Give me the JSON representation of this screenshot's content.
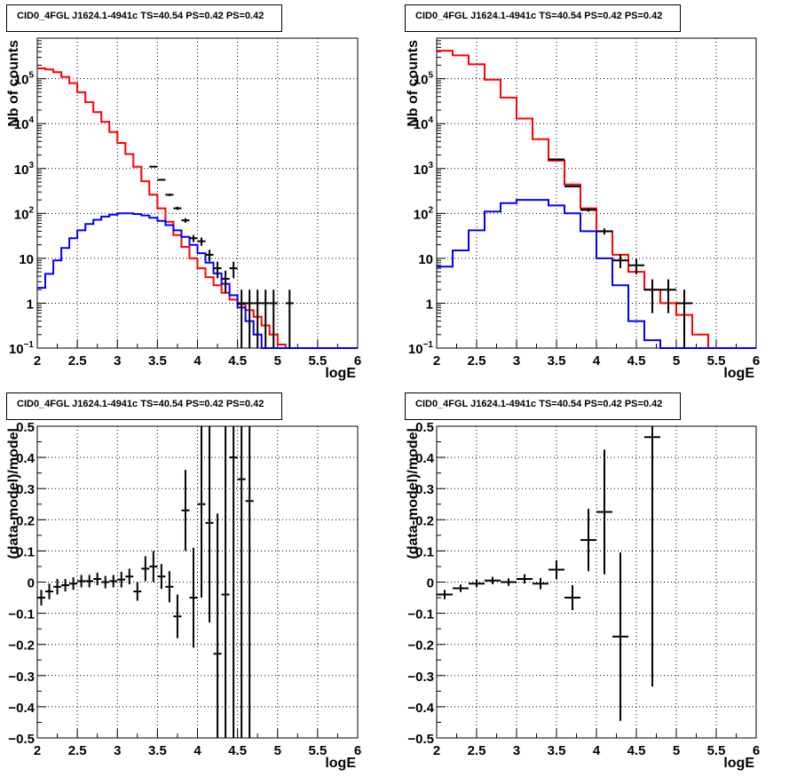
{
  "colors": {
    "data": "#000000",
    "total_model": "#ff0000",
    "component_model": "#0000ff",
    "grid": "#000000"
  },
  "chart_data": [
    {
      "type": "line",
      "title": "CID0_4FGL J1624.1-4941c TS=40.54 PS=0.42 PS=0.42",
      "xlabel": "logE",
      "ylabel": "Nb of counts",
      "xlim": [
        2,
        6
      ],
      "ylim": [
        0.1,
        800000
      ],
      "log_y": true,
      "grid": true,
      "x_ticks": [
        "2",
        "2.5",
        "3",
        "3.5",
        "4",
        "4.5",
        "5",
        "5.5",
        "6"
      ],
      "y_ticks": [
        {
          "value": 0.1,
          "base": "10",
          "exp": "−1"
        },
        {
          "value": 1,
          "label": "1"
        },
        {
          "value": 10,
          "label": "10"
        },
        {
          "value": 100,
          "base": "10",
          "exp": "2"
        },
        {
          "value": 1000,
          "base": "10",
          "exp": "3"
        },
        {
          "value": 10000,
          "base": "10",
          "exp": "4"
        },
        {
          "value": 100000,
          "base": "10",
          "exp": "5"
        }
      ],
      "bin_width": 0.1,
      "series": [
        {
          "kind": "hist",
          "color": "#ff0000",
          "x": [
            2.0,
            2.1,
            2.2,
            2.3,
            2.4,
            2.5,
            2.6,
            2.7,
            2.8,
            2.9,
            3.0,
            3.1,
            3.2,
            3.3,
            3.4,
            3.5,
            3.6,
            3.7,
            3.8,
            3.9,
            4.0,
            4.1,
            4.2,
            4.3,
            4.4,
            4.5,
            4.6,
            4.7,
            4.8,
            4.9,
            5.0,
            5.1,
            5.2,
            5.3,
            5.4,
            5.5,
            5.6,
            5.7,
            5.8,
            5.9
          ],
          "values": [
            170000,
            160000,
            140000,
            110000,
            80000,
            50000,
            30000,
            18000,
            11000,
            6500,
            3700,
            2100,
            1100,
            520,
            260,
            130,
            65,
            33,
            18,
            10,
            6,
            3.8,
            2.5,
            1.7,
            1.2,
            0.95,
            0.7,
            0.5,
            0.32,
            0.2,
            0.12,
            0.1,
            0.1,
            0.1,
            0.1,
            0.1,
            0.1,
            0.1,
            0.1,
            0.1
          ]
        },
        {
          "kind": "hist",
          "color": "#0000ff",
          "x": [
            2.0,
            2.1,
            2.2,
            2.3,
            2.4,
            2.5,
            2.6,
            2.7,
            2.8,
            2.9,
            3.0,
            3.1,
            3.2,
            3.3,
            3.4,
            3.5,
            3.6,
            3.7,
            3.8,
            3.9,
            4.0,
            4.1,
            4.2,
            4.3,
            4.4,
            4.5,
            4.6,
            4.7,
            4.8,
            4.9,
            5.0,
            5.1,
            5.2,
            5.3,
            5.4,
            5.5,
            5.6,
            5.7,
            5.8,
            5.9
          ],
          "values": [
            2.2,
            4.5,
            9,
            17,
            28,
            42,
            58,
            72,
            85,
            94,
            100,
            100,
            97,
            90,
            80,
            68,
            55,
            42,
            30,
            20,
            13,
            8,
            4.6,
            2.7,
            1.5,
            0.8,
            0.4,
            0.2,
            0.1,
            0.1,
            0.1,
            0.1,
            0.1,
            0.1,
            0.1,
            0.1,
            0.1,
            0.1,
            0.1,
            0.1
          ]
        },
        {
          "kind": "points",
          "color": "#000000",
          "x": [
            3.45,
            3.55,
            3.65,
            3.75,
            3.85,
            3.95,
            4.05,
            4.15,
            4.25,
            4.35,
            4.45,
            4.55,
            4.65,
            4.75,
            4.85,
            4.95,
            5.15
          ],
          "values": [
            1100,
            560,
            260,
            130,
            70,
            28,
            24,
            12,
            6,
            3.5,
            6,
            1,
            1,
            1,
            1,
            1,
            1
          ],
          "err_low": [
            33,
            24,
            16,
            11,
            8,
            5,
            5,
            3.5,
            2.4,
            1.8,
            2.4,
            0.92,
            0.92,
            0.92,
            0.92,
            0.92,
            0.92
          ],
          "err_high": [
            33,
            24,
            16,
            11,
            8,
            5,
            5,
            3.5,
            2.4,
            1.8,
            2.4,
            1,
            1,
            1,
            1,
            1,
            1
          ]
        }
      ]
    },
    {
      "type": "line",
      "title": "CID0_4FGL J1624.1-4941c TS=40.54 PS=0.42 PS=0.42",
      "xlabel": "logE",
      "ylabel": "Nb of counts",
      "xlim": [
        2,
        6
      ],
      "ylim": [
        0.1,
        800000
      ],
      "log_y": true,
      "grid": true,
      "x_ticks": [
        "2",
        "2.5",
        "3",
        "3.5",
        "4",
        "4.5",
        "5",
        "5.5",
        "6"
      ],
      "y_ticks": [
        {
          "value": 0.1,
          "base": "10",
          "exp": "−1"
        },
        {
          "value": 1,
          "label": "1"
        },
        {
          "value": 10,
          "label": "10"
        },
        {
          "value": 100,
          "base": "10",
          "exp": "2"
        },
        {
          "value": 1000,
          "base": "10",
          "exp": "3"
        },
        {
          "value": 10000,
          "base": "10",
          "exp": "4"
        },
        {
          "value": 100000,
          "base": "10",
          "exp": "5"
        }
      ],
      "bin_width": 0.2,
      "series": [
        {
          "kind": "hist",
          "color": "#ff0000",
          "x": [
            2.0,
            2.2,
            2.4,
            2.6,
            2.8,
            3.0,
            3.2,
            3.4,
            3.6,
            3.8,
            4.0,
            4.2,
            4.4,
            4.6,
            4.8,
            5.0,
            5.2,
            5.4,
            5.6,
            5.8
          ],
          "values": [
            420000,
            330000,
            210000,
            95000,
            38000,
            13000,
            4500,
            1500,
            440,
            130,
            40,
            12,
            5,
            2,
            1,
            0.55,
            0.2,
            0.1,
            0.1,
            0.1
          ]
        },
        {
          "kind": "hist",
          "color": "#0000ff",
          "x": [
            2.0,
            2.2,
            2.4,
            2.6,
            2.8,
            3.0,
            3.2,
            3.4,
            3.6,
            3.8,
            4.0,
            4.2,
            4.4,
            4.6,
            4.8,
            5.0,
            5.2,
            5.4,
            5.6,
            5.8
          ],
          "values": [
            6.5,
            15,
            42,
            110,
            170,
            200,
            200,
            150,
            100,
            40,
            10,
            2.5,
            0.4,
            0.15,
            0.1,
            0.1,
            0.1,
            0.1,
            0.1,
            0.1
          ]
        },
        {
          "kind": "points",
          "color": "#000000",
          "x": [
            3.5,
            3.7,
            3.9,
            4.1,
            4.3,
            4.5,
            4.7,
            4.9,
            5.1
          ],
          "values": [
            1600,
            400,
            120,
            40,
            9,
            7,
            2,
            2,
            1
          ],
          "err_low": [
            40,
            20,
            11,
            6.3,
            3,
            2.6,
            1.4,
            1.4,
            0.92
          ],
          "err_high": [
            40,
            20,
            11,
            6.3,
            3,
            2.6,
            1.4,
            1.4,
            1
          ]
        }
      ]
    },
    {
      "type": "scatter",
      "title": "CID0_4FGL J1624.1-4941c TS=40.54 PS=0.42 PS=0.42",
      "xlabel": "logE",
      "ylabel": "(data-model)/model",
      "xlim": [
        2,
        6
      ],
      "ylim": [
        -0.5,
        0.5
      ],
      "log_y": false,
      "grid": true,
      "x_ticks": [
        "2",
        "2.5",
        "3",
        "3.5",
        "4",
        "4.5",
        "5",
        "5.5",
        "6"
      ],
      "y_ticks": [
        "−0.5",
        "−0.4",
        "−0.3",
        "−0.2",
        "−0.1",
        "0",
        "0.1",
        "0.2",
        "0.3",
        "0.4",
        "0.5"
      ],
      "bin_width": 0.1,
      "series": [
        {
          "kind": "points",
          "color": "#000000",
          "x": [
            2.05,
            2.15,
            2.25,
            2.35,
            2.45,
            2.55,
            2.65,
            2.75,
            2.85,
            2.95,
            3.05,
            3.15,
            3.25,
            3.35,
            3.45,
            3.55,
            3.65,
            3.75,
            3.85,
            3.95,
            4.05,
            4.15,
            4.25,
            4.35,
            4.45,
            4.55,
            4.65
          ],
          "values": [
            -0.05,
            -0.03,
            -0.015,
            -0.01,
            -0.005,
            0.003,
            0.003,
            0.01,
            0,
            0.003,
            0.008,
            0.018,
            -0.03,
            0.043,
            0.05,
            0.018,
            -0.015,
            -0.11,
            0.23,
            -0.05,
            0.25,
            0.19,
            -0.23,
            -0.04,
            0.4,
            0.33,
            0.26
          ],
          "err": [
            0.025,
            0.025,
            0.025,
            0.02,
            0.02,
            0.02,
            0.02,
            0.02,
            0.02,
            0.02,
            0.025,
            0.025,
            0.03,
            0.04,
            0.05,
            0.04,
            0.05,
            0.07,
            0.13,
            0.16,
            0.3,
            0.32,
            0.45,
            0.55,
            0.9,
            0.9,
            1.0
          ]
        }
      ]
    },
    {
      "type": "scatter",
      "title": "CID0_4FGL J1624.1-4941c TS=40.54 PS=0.42 PS=0.42",
      "xlabel": "logE",
      "ylabel": "(data-model)/model",
      "xlim": [
        2,
        6
      ],
      "ylim": [
        -0.5,
        0.5
      ],
      "log_y": false,
      "grid": true,
      "x_ticks": [
        "2",
        "2.5",
        "3",
        "3.5",
        "4",
        "4.5",
        "5",
        "5.5",
        "6"
      ],
      "y_ticks": [
        "−0.5",
        "−0.4",
        "−0.3",
        "−0.2",
        "−0.1",
        "0",
        "0.1",
        "0.2",
        "0.3",
        "0.4",
        "0.5"
      ],
      "bin_width": 0.2,
      "series": [
        {
          "kind": "points",
          "color": "#000000",
          "x": [
            2.1,
            2.3,
            2.5,
            2.7,
            2.9,
            3.1,
            3.3,
            3.5,
            3.7,
            3.9,
            4.1,
            4.3,
            4.7
          ],
          "values": [
            -0.04,
            -0.02,
            -0.005,
            0.005,
            0,
            0.01,
            -0.005,
            0.04,
            -0.05,
            0.135,
            0.225,
            -0.175,
            0.465
          ],
          "err": [
            0.015,
            0.012,
            0.012,
            0.012,
            0.012,
            0.015,
            0.018,
            0.03,
            0.04,
            0.1,
            0.2,
            0.27,
            0.8
          ]
        }
      ]
    }
  ]
}
